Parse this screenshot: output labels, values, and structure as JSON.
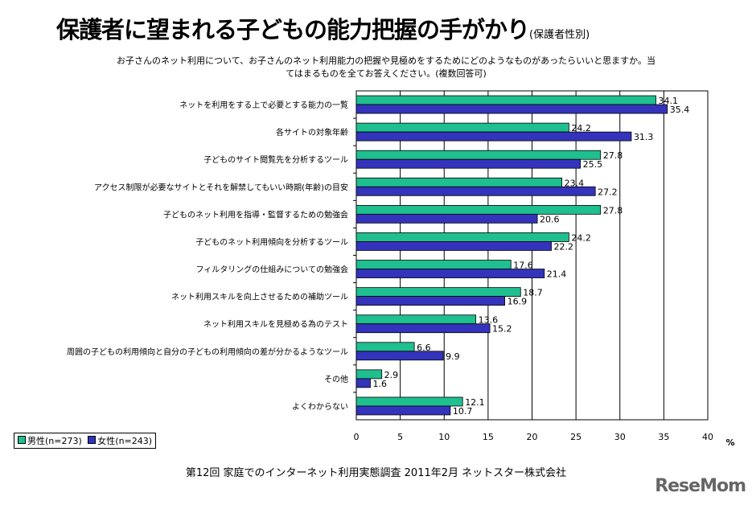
{
  "chart_data": {
    "type": "bar",
    "orientation": "horizontal",
    "title": "保護者に望まれる子どもの能力把握の手がかり",
    "title_note": "(保護者性別)",
    "subtitle": "お子さんのネット利用について、お子さんのネット利用能力の把握や見極めをするためにどのようなものがあったらいいと思ますか。当てはまるものを全てお答えください。(複数回答可)",
    "categories": [
      "ネットを利用をする上で必要とする能力の一覧",
      "各サイトの対象年齢",
      "子どものサイト閲覧先を分析するツール",
      "アクセス制限が必要なサイトとそれを解禁してもいい時期(年齢)の目安",
      "子どものネット利用を指導・監督するための勉強会",
      "子どものネット利用傾向を分析するツール",
      "フィルタリングの仕組みについての勉強会",
      "ネット利用スキルを向上させるための補助ツール",
      "ネット利用スキルを見極める為のテスト",
      "周囲の子どもの利用傾向と自分の子どもの利用傾向の差が分かるようなツール",
      "その他",
      "よくわからない"
    ],
    "series": [
      {
        "name": "男性(n=273)",
        "color": "#1fbf8f",
        "values": [
          34.1,
          24.2,
          27.8,
          23.4,
          27.8,
          24.2,
          17.6,
          18.7,
          13.6,
          6.6,
          2.9,
          12.1
        ]
      },
      {
        "name": "女性(n=243)",
        "color": "#3333bb",
        "values": [
          35.4,
          31.3,
          25.5,
          27.2,
          20.6,
          22.2,
          21.4,
          16.9,
          15.2,
          9.9,
          1.6,
          10.7
        ]
      }
    ],
    "xlim": [
      0,
      40
    ],
    "xticks": [
      "0",
      "5",
      "10",
      "15",
      "20",
      "25",
      "30",
      "35",
      "40"
    ],
    "xunit": "%",
    "grid": true,
    "legend": "bottom-left"
  },
  "footer": "第12回  家庭でのインターネット利用実態調査  2011年2月  ネットスター株式会社",
  "watermark": "ReseMom"
}
